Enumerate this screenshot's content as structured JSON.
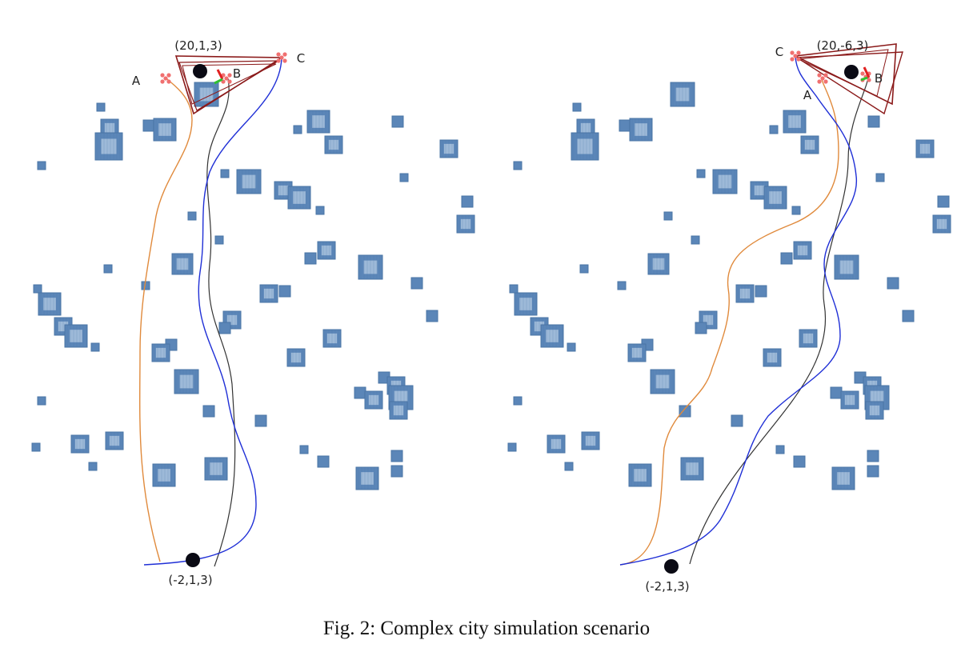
{
  "caption": "Fig. 2: Complex city simulation scenario",
  "colors": {
    "building": "#5b86b8",
    "building_inner": "#9db9d8",
    "path_orange": "#e08a3c",
    "path_black": "#333333",
    "path_blue": "#1f2fd6",
    "formation_triangle": "#8b1a1a",
    "waypoint_marker": "#f07070",
    "uav_body": "#0a0a14"
  },
  "panels": [
    {
      "id": "left",
      "start_label": "(-2,1,3)",
      "goal_label": "(20,1,3)",
      "agents": [
        "A",
        "B",
        "C"
      ]
    },
    {
      "id": "right",
      "start_label": "(-2,1,3)",
      "goal_label": "(20,-6,3)",
      "agents": [
        "A",
        "B",
        "C"
      ]
    }
  ]
}
